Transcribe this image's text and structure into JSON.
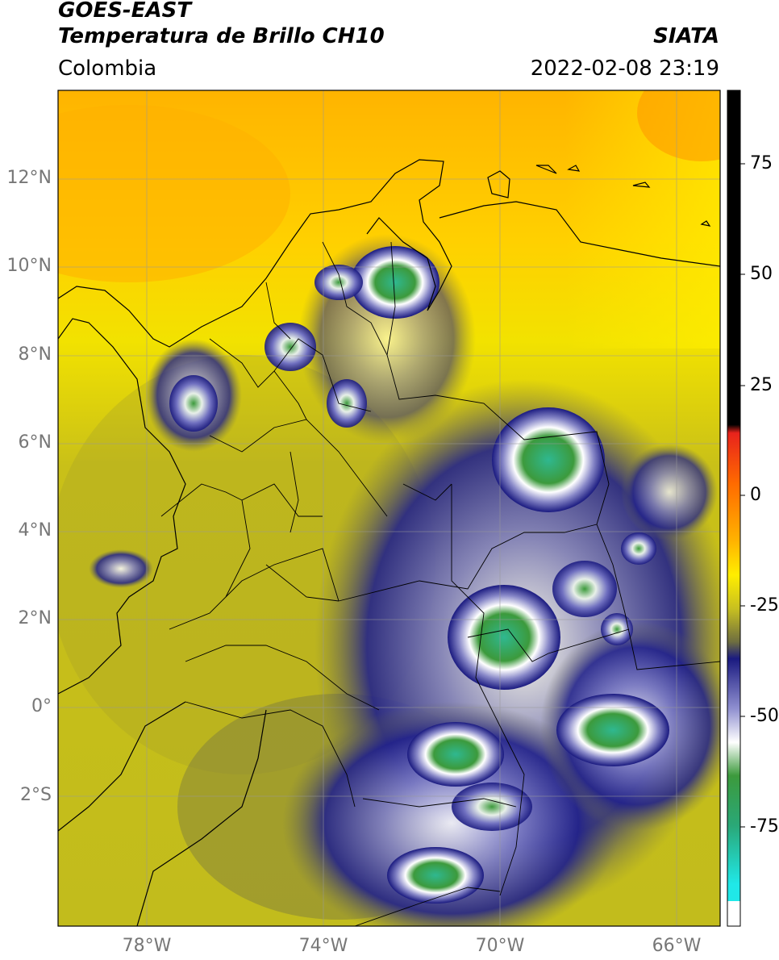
{
  "header": {
    "satellite": "GOES-EAST",
    "product": "Temperatura de Brillo CH10",
    "region": "Colombia",
    "agency": "SIATA",
    "datetime": "2022-02-08 23:19"
  },
  "map": {
    "lat_ticks": [
      "12°N",
      "10°N",
      "8°N",
      "6°N",
      "4°N",
      "2°N",
      "0°",
      "2°S"
    ],
    "lon_ticks": [
      "78°W",
      "74°W",
      "70°W",
      "66°W"
    ],
    "lon_range": [
      -80,
      -65
    ],
    "lat_range": [
      -5.2,
      14
    ]
  },
  "colorbar": {
    "ticks": [
      "75",
      "50",
      "25",
      "0",
      "-25",
      "-50",
      "-75"
    ],
    "tick_values": [
      75,
      50,
      25,
      0,
      -25,
      -50,
      -75
    ],
    "range": [
      -95,
      90
    ],
    "colors": {
      "warm_top": "#000000",
      "red": "#e8231c",
      "orange": "#ff9e00",
      "yellow": "#ffee00",
      "olive": "#9a9a20",
      "navy": "#1a1a80",
      "white": "#ffffff",
      "green": "#3c9a3c",
      "teal": "#30c0a0",
      "cyan": "#20e8e8"
    }
  }
}
